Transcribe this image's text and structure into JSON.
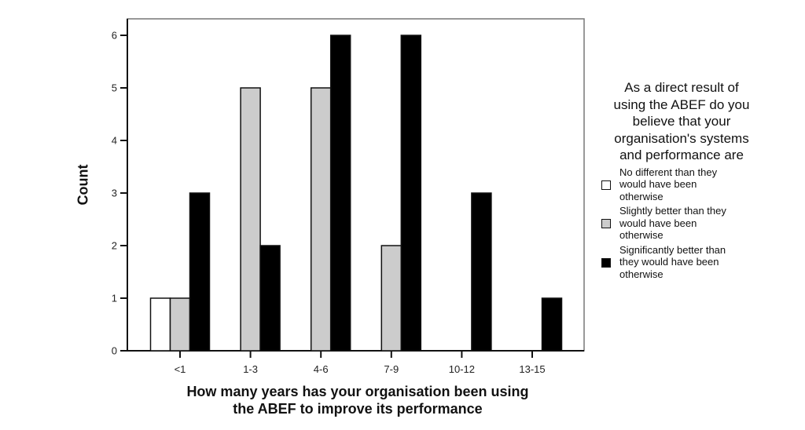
{
  "chart_data": {
    "type": "bar",
    "title": "",
    "xlabel": "How many years has your organisation been using the ABEF to improve its performance",
    "xlabel_lines": [
      "How many years has your organisation been using",
      "the ABEF to improve its performance"
    ],
    "ylabel": "Count",
    "ylim": [
      0,
      6
    ],
    "yticks": [
      0,
      1,
      2,
      3,
      4,
      5,
      6
    ],
    "grid": false,
    "legend_position": "right",
    "categories": [
      "<1",
      "1-3",
      "4-6",
      "7-9",
      "10-12",
      "13-15"
    ],
    "legend_title": "As a direct result of using the ABEF do you believe that your organisation's systems and performance are",
    "legend_title_lines": [
      "As a direct result of",
      "using the ABEF do you",
      "believe that your",
      "organisation's systems",
      "and performance are"
    ],
    "series": [
      {
        "name": "No different than they would have been otherwise",
        "lines": [
          "No different than they",
          "would have been",
          "otherwise"
        ],
        "color": "#ffffff",
        "values": [
          1,
          0,
          0,
          0,
          0,
          0
        ]
      },
      {
        "name": "Slightly better than they would have been otherwise",
        "lines": [
          "Slightly better than they",
          "would have been",
          "otherwise"
        ],
        "color": "#cccccc",
        "values": [
          1,
          5,
          5,
          2,
          0,
          0
        ]
      },
      {
        "name": "Significantly better than they would have been otherwise",
        "lines": [
          "Significantly better than",
          "they would have been",
          "otherwise"
        ],
        "color": "#000000",
        "values": [
          3,
          2,
          6,
          6,
          3,
          1
        ]
      }
    ]
  }
}
